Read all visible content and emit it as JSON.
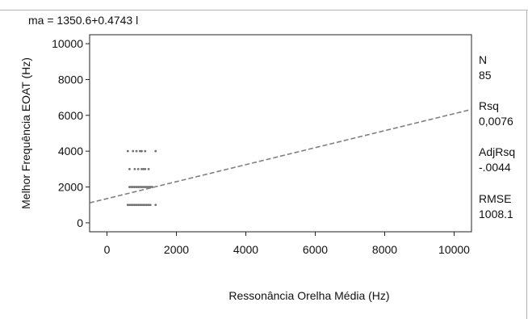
{
  "chart_data": {
    "type": "scatter",
    "title": "ma = 1350.6+0.4743 l",
    "xlabel": "Ressonância Orelha Média (Hz)",
    "ylabel": "Melhor Frequência EOAT (Hz)",
    "xlim": [
      -500,
      10500
    ],
    "ylim": [
      -500,
      10500
    ],
    "x_ticks": [
      0,
      2000,
      4000,
      6000,
      8000,
      10000
    ],
    "y_ticks": [
      0,
      2000,
      4000,
      6000,
      8000,
      10000
    ],
    "x_tick_labels": [
      "0",
      "2000",
      "4000",
      "6000",
      "8000",
      "10000"
    ],
    "y_tick_labels": [
      "0",
      "2000",
      "4000",
      "6000",
      "8000",
      "10000"
    ],
    "grid": false,
    "fit_line": {
      "intercept": 1350.6,
      "slope": 0.4743,
      "style": "dashed",
      "color": "#808080"
    },
    "point_color": "#707070",
    "points": [
      [
        600,
        1000
      ],
      [
        650,
        1000
      ],
      [
        700,
        1000
      ],
      [
        750,
        1000
      ],
      [
        800,
        1000
      ],
      [
        850,
        1000
      ],
      [
        900,
        1000
      ],
      [
        950,
        1000
      ],
      [
        1000,
        1000
      ],
      [
        1050,
        1000
      ],
      [
        1100,
        1000
      ],
      [
        1150,
        1000
      ],
      [
        1200,
        1000
      ],
      [
        1250,
        1000
      ],
      [
        1400,
        1000
      ],
      [
        650,
        2000
      ],
      [
        700,
        2000
      ],
      [
        750,
        2000
      ],
      [
        800,
        2000
      ],
      [
        850,
        2000
      ],
      [
        900,
        2000
      ],
      [
        950,
        2000
      ],
      [
        1000,
        2000
      ],
      [
        1050,
        2000
      ],
      [
        1100,
        2000
      ],
      [
        1150,
        2000
      ],
      [
        1200,
        2000
      ],
      [
        1250,
        2000
      ],
      [
        1300,
        2000
      ],
      [
        650,
        3000
      ],
      [
        800,
        3000
      ],
      [
        900,
        3000
      ],
      [
        1000,
        3000
      ],
      [
        1050,
        3000
      ],
      [
        1100,
        3000
      ],
      [
        1200,
        3000
      ],
      [
        600,
        4000
      ],
      [
        750,
        4000
      ],
      [
        850,
        4000
      ],
      [
        950,
        4000
      ],
      [
        1000,
        4000
      ],
      [
        1100,
        4000
      ],
      [
        1400,
        4000
      ]
    ],
    "stats": [
      {
        "label": "N",
        "value": "85"
      },
      {
        "label": "Rsq",
        "value": "0,0076"
      },
      {
        "label": "AdjRsq",
        "value": "-.0044"
      },
      {
        "label": "RMSE",
        "value": "1008.1"
      }
    ]
  }
}
